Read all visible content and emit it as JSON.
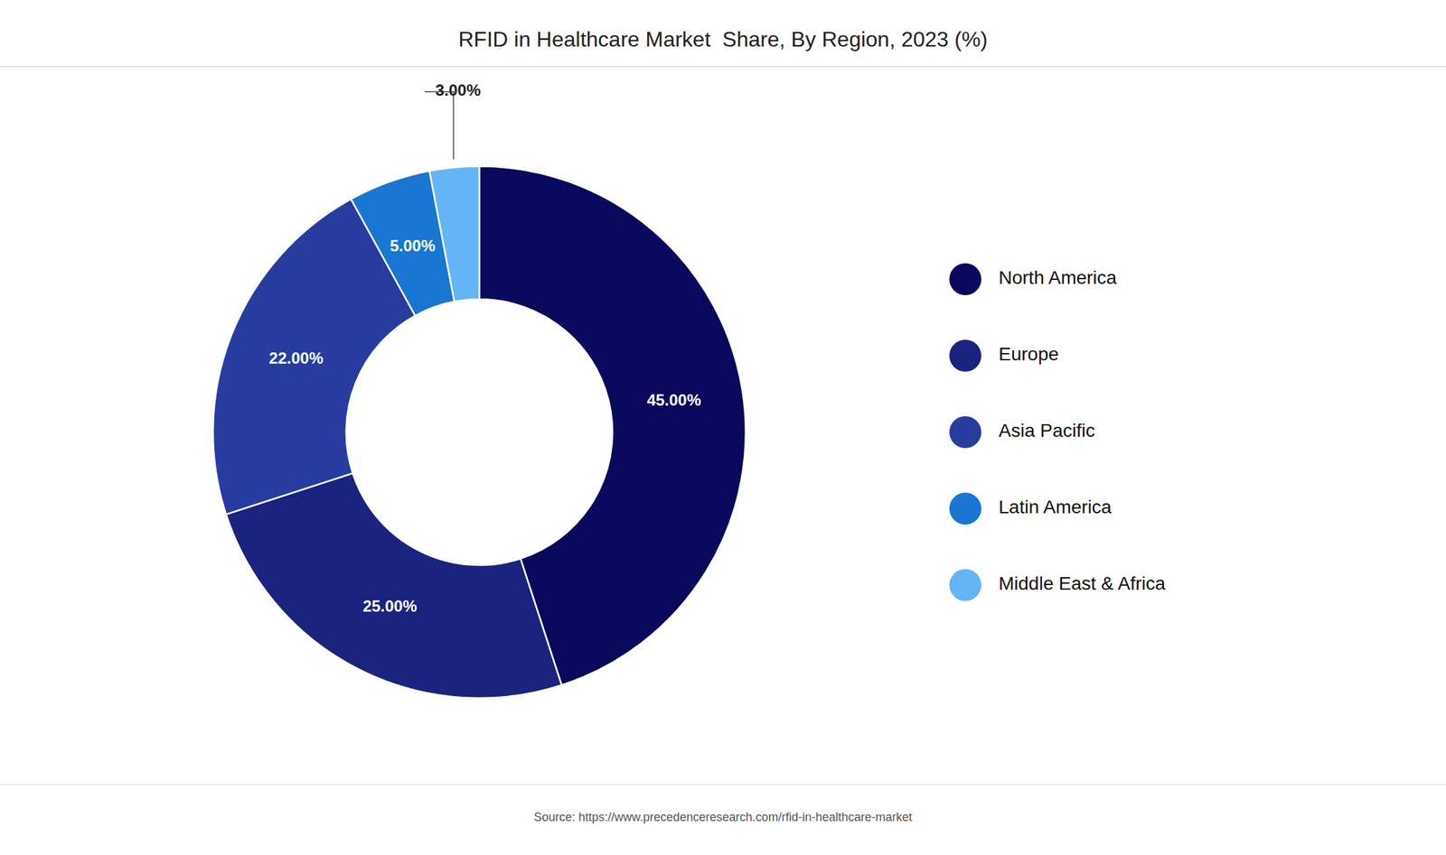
{
  "chart_data": {
    "type": "pie",
    "title": "RFID in Healthcare Market  Share, By Region, 2023 (%)",
    "categories": [
      "North America",
      "Europe",
      "Asia Pacific",
      "Latin America",
      "Middle East & Africa"
    ],
    "values": [
      45.0,
      25.0,
      22.0,
      5.0,
      3.0
    ],
    "value_labels": [
      "45.00%",
      "25.00%",
      "22.00%",
      "5.00%",
      "3.00%"
    ],
    "colors": [
      "#08085c",
      "#1a237e",
      "#283ca0",
      "#1976d2",
      "#64b5f6"
    ],
    "data_labels": true,
    "legend": "right",
    "annotations": [
      "Source: https://www.precedenceresearch.com/rfid-in-healthcare-market"
    ]
  }
}
